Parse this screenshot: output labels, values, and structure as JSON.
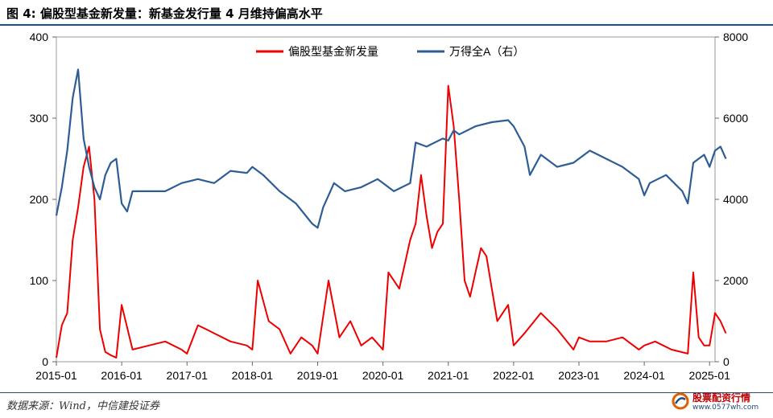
{
  "header": {
    "title": "图 4:  偏股型基金新发量：新基金发行量 4 月维持偏高水平"
  },
  "footer": {
    "source": "数据来源：Wind，中信建投证券"
  },
  "watermark": {
    "name": "股票配资行情",
    "url": "www.0577wh.com"
  },
  "colors": {
    "series_red": "#ee0000",
    "series_blue": "#2e5d96",
    "axis": "#999999",
    "brand_rule": "#1f4e79"
  },
  "chart_data": {
    "type": "line",
    "title": "",
    "legend_position": "top-center",
    "grid": false,
    "x_ticks": [
      "2015-01",
      "2016-01",
      "2017-01",
      "2018-01",
      "2019-01",
      "2020-01",
      "2021-01",
      "2022-01",
      "2023-01",
      "2024-01",
      "2025-01"
    ],
    "y_left": {
      "ylim": [
        0,
        400
      ],
      "ticks": [
        "0",
        "100",
        "200",
        "300",
        "400"
      ]
    },
    "y_right": {
      "ylim": [
        0,
        8000
      ],
      "ticks": [
        "0",
        "2000",
        "4000",
        "6000",
        "8000"
      ]
    },
    "series": [
      {
        "name": "偏股型基金新发量",
        "axis": "left",
        "color": "#ee0000",
        "x": [
          "2015-01",
          "2015-02",
          "2015-03",
          "2015-04",
          "2015-05",
          "2015-06",
          "2015-07",
          "2015-08",
          "2015-09",
          "2015-10",
          "2015-11",
          "2015-12",
          "2016-01",
          "2016-03",
          "2016-06",
          "2016-09",
          "2016-12",
          "2017-01",
          "2017-03",
          "2017-06",
          "2017-09",
          "2017-12",
          "2018-01",
          "2018-02",
          "2018-04",
          "2018-06",
          "2018-08",
          "2018-10",
          "2018-12",
          "2019-01",
          "2019-03",
          "2019-05",
          "2019-07",
          "2019-09",
          "2019-11",
          "2020-01",
          "2020-02",
          "2020-04",
          "2020-06",
          "2020-07",
          "2020-08",
          "2020-09",
          "2020-10",
          "2020-11",
          "2020-12",
          "2021-01",
          "2021-02",
          "2021-03",
          "2021-04",
          "2021-05",
          "2021-06",
          "2021-07",
          "2021-08",
          "2021-09",
          "2021-10",
          "2021-11",
          "2021-12",
          "2022-01",
          "2022-03",
          "2022-06",
          "2022-09",
          "2022-12",
          "2023-01",
          "2023-03",
          "2023-06",
          "2023-09",
          "2023-12",
          "2024-01",
          "2024-03",
          "2024-06",
          "2024-09",
          "2024-10",
          "2024-11",
          "2024-12",
          "2025-01",
          "2025-02",
          "2025-03",
          "2025-04"
        ],
        "values": [
          5,
          45,
          60,
          150,
          190,
          240,
          265,
          200,
          40,
          12,
          8,
          5,
          70,
          15,
          20,
          25,
          15,
          10,
          45,
          35,
          25,
          20,
          15,
          100,
          50,
          40,
          10,
          30,
          20,
          10,
          100,
          30,
          50,
          20,
          30,
          15,
          110,
          90,
          150,
          170,
          230,
          180,
          140,
          160,
          170,
          340,
          290,
          200,
          100,
          80,
          110,
          140,
          130,
          90,
          50,
          60,
          70,
          20,
          35,
          60,
          40,
          15,
          30,
          25,
          25,
          30,
          15,
          20,
          25,
          15,
          10,
          110,
          30,
          20,
          20,
          60,
          50,
          35
        ]
      },
      {
        "name": "万得全A（右）",
        "axis": "right",
        "color": "#2e5d96",
        "x": [
          "2015-01",
          "2015-02",
          "2015-03",
          "2015-04",
          "2015-05",
          "2015-06",
          "2015-07",
          "2015-08",
          "2015-09",
          "2015-10",
          "2015-11",
          "2015-12",
          "2016-01",
          "2016-02",
          "2016-03",
          "2016-06",
          "2016-09",
          "2016-12",
          "2017-03",
          "2017-06",
          "2017-09",
          "2017-12",
          "2018-01",
          "2018-03",
          "2018-06",
          "2018-09",
          "2018-12",
          "2019-01",
          "2019-02",
          "2019-04",
          "2019-06",
          "2019-09",
          "2019-12",
          "2020-01",
          "2020-03",
          "2020-06",
          "2020-07",
          "2020-09",
          "2020-12",
          "2021-01",
          "2021-02",
          "2021-03",
          "2021-06",
          "2021-09",
          "2021-12",
          "2022-01",
          "2022-03",
          "2022-04",
          "2022-06",
          "2022-09",
          "2022-12",
          "2023-03",
          "2023-06",
          "2023-09",
          "2023-12",
          "2024-01",
          "2024-02",
          "2024-05",
          "2024-08",
          "2024-09",
          "2024-10",
          "2024-11",
          "2024-12",
          "2025-01",
          "2025-02",
          "2025-03",
          "2025-04"
        ],
        "values": [
          3600,
          4300,
          5200,
          6500,
          7200,
          5500,
          4800,
          4300,
          4000,
          4600,
          4900,
          5000,
          3900,
          3700,
          4200,
          4200,
          4200,
          4400,
          4500,
          4400,
          4700,
          4650,
          4800,
          4600,
          4200,
          3900,
          3400,
          3300,
          3800,
          4400,
          4200,
          4300,
          4500,
          4400,
          4200,
          4400,
          5400,
          5300,
          5500,
          5450,
          5700,
          5600,
          5800,
          5900,
          5950,
          5800,
          5300,
          4600,
          5100,
          4800,
          4900,
          5200,
          5000,
          4800,
          4500,
          4100,
          4400,
          4600,
          4200,
          3900,
          4900,
          5000,
          5100,
          4800,
          5200,
          5300,
          5000
        ]
      }
    ]
  }
}
